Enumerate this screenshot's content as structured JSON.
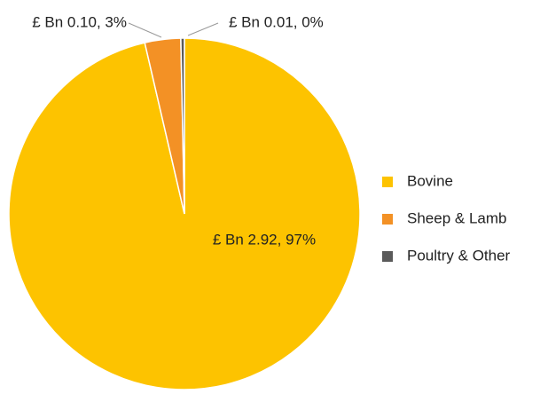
{
  "chart_data": {
    "type": "pie",
    "categories": [
      "Bovine",
      "Sheep & Lamb",
      "Poultry & Other"
    ],
    "values": [
      2.92,
      0.1,
      0.01
    ],
    "value_labels": [
      "£ Bn 2.92, 97%",
      "£ Bn 0.10, 3%",
      "£ Bn 0.01, 0%"
    ],
    "colors": [
      "#fdc300",
      "#f39125",
      "#5a5a5a"
    ],
    "legend": "right"
  }
}
